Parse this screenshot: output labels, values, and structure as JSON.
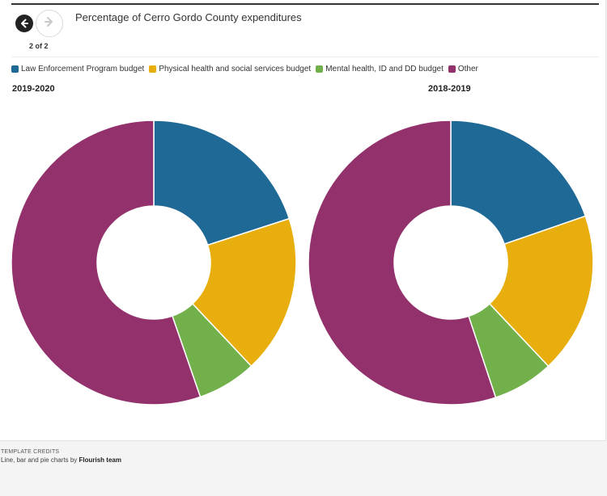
{
  "header": {
    "title": "Percentage of Cerro Gordo County expenditures",
    "pager": "2 of 2"
  },
  "colors": {
    "law": "#1f6996",
    "health": "#e8ae0e",
    "mental": "#71b04b",
    "other": "#92316c"
  },
  "chart_data": [
    {
      "type": "pie",
      "donut": true,
      "title": "2019-2020",
      "categories": [
        "Law Enforcement Program budget",
        "Physical health and social services budget",
        "Mental health, ID and DD budget",
        "Other"
      ],
      "values": [
        20.0,
        18.0,
        6.7,
        55.3
      ],
      "legend": "top-left"
    },
    {
      "type": "pie",
      "donut": true,
      "title": "2018-2019",
      "categories": [
        "Law Enforcement Program budget",
        "Physical health and social services budget",
        "Mental health, ID and DD budget",
        "Other"
      ],
      "values": [
        19.7,
        18.3,
        6.9,
        55.1
      ],
      "legend": "top-left"
    }
  ],
  "credits": {
    "heading": "TEMPLATE CREDITS",
    "text": "Line, bar and pie charts by ",
    "author": "Flourish team"
  }
}
